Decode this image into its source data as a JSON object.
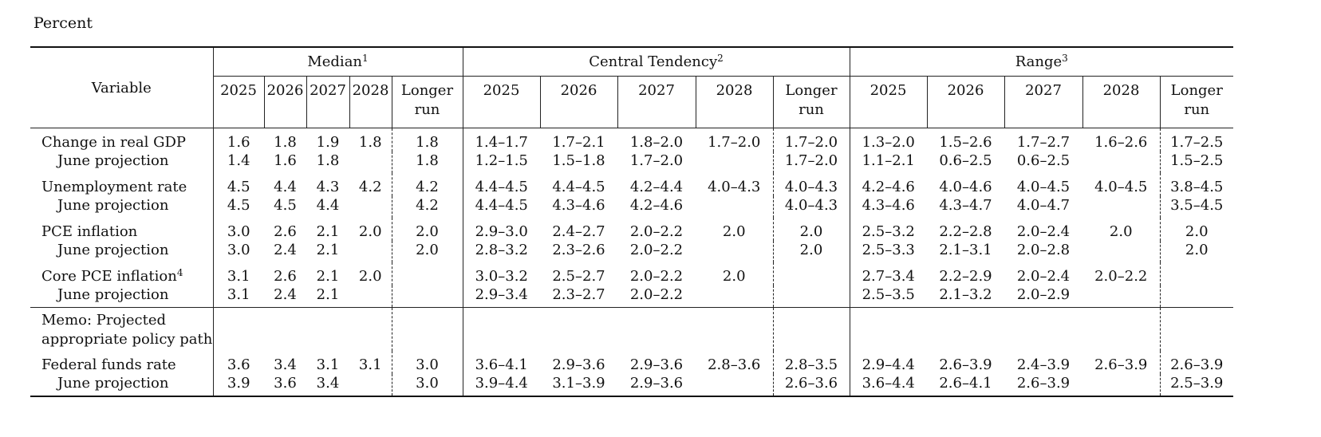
{
  "page_label": "Percent",
  "header": {
    "variable": "Variable",
    "median": "Median",
    "median_note": "1",
    "central_tendency": "Central Tendency",
    "central_tendency_note": "2",
    "range": "Range",
    "range_note": "3",
    "years": [
      "2025",
      "2026",
      "2027",
      "2028"
    ],
    "longer_run_1": "Longer",
    "longer_run_2": "run"
  },
  "rows": {
    "gdp": {
      "label": "Change in real GDP",
      "median": [
        "1.6",
        "1.8",
        "1.9",
        "1.8",
        "1.8"
      ],
      "central": [
        "1.4–1.7",
        "1.7–2.1",
        "1.8–2.0",
        "1.7–2.0",
        "1.7–2.0"
      ],
      "range": [
        "1.3–2.0",
        "1.5–2.6",
        "1.7–2.7",
        "1.6–2.6",
        "1.7–2.5"
      ]
    },
    "gdp_june": {
      "label": "June projection",
      "median": [
        "1.4",
        "1.6",
        "1.8",
        "",
        "1.8"
      ],
      "central": [
        "1.2–1.5",
        "1.5–1.8",
        "1.7–2.0",
        "",
        "1.7–2.0"
      ],
      "range": [
        "1.1–2.1",
        "0.6–2.5",
        "0.6–2.5",
        "",
        "1.5–2.5"
      ]
    },
    "unemp": {
      "label": "Unemployment rate",
      "median": [
        "4.5",
        "4.4",
        "4.3",
        "4.2",
        "4.2"
      ],
      "central": [
        "4.4–4.5",
        "4.4–4.5",
        "4.2–4.4",
        "4.0–4.3",
        "4.0–4.3"
      ],
      "range": [
        "4.2–4.6",
        "4.0–4.6",
        "4.0–4.5",
        "4.0–4.5",
        "3.8–4.5"
      ]
    },
    "unemp_june": {
      "label": "June projection",
      "median": [
        "4.5",
        "4.5",
        "4.4",
        "",
        "4.2"
      ],
      "central": [
        "4.4–4.5",
        "4.3–4.6",
        "4.2–4.6",
        "",
        "4.0–4.3"
      ],
      "range": [
        "4.3–4.6",
        "4.3–4.7",
        "4.0–4.7",
        "",
        "3.5–4.5"
      ]
    },
    "pce": {
      "label": "PCE inflation",
      "median": [
        "3.0",
        "2.6",
        "2.1",
        "2.0",
        "2.0"
      ],
      "central": [
        "2.9–3.0",
        "2.4–2.7",
        "2.0–2.2",
        "2.0",
        "2.0"
      ],
      "range": [
        "2.5–3.2",
        "2.2–2.8",
        "2.0–2.4",
        "2.0",
        "2.0"
      ]
    },
    "pce_june": {
      "label": "June projection",
      "median": [
        "3.0",
        "2.4",
        "2.1",
        "",
        "2.0"
      ],
      "central": [
        "2.8–3.2",
        "2.3–2.6",
        "2.0–2.2",
        "",
        "2.0"
      ],
      "range": [
        "2.5–3.3",
        "2.1–3.1",
        "2.0–2.8",
        "",
        "2.0"
      ]
    },
    "core": {
      "label": "Core PCE inflation",
      "note": "4",
      "median": [
        "3.1",
        "2.6",
        "2.1",
        "2.0",
        ""
      ],
      "central": [
        "3.0–3.2",
        "2.5–2.7",
        "2.0–2.2",
        "2.0",
        ""
      ],
      "range": [
        "2.7–3.4",
        "2.2–2.9",
        "2.0–2.4",
        "2.0–2.2",
        ""
      ]
    },
    "core_june": {
      "label": "June projection",
      "median": [
        "3.1",
        "2.4",
        "2.1",
        "",
        ""
      ],
      "central": [
        "2.9–3.4",
        "2.3–2.7",
        "2.0–2.2",
        "",
        ""
      ],
      "range": [
        "2.5–3.5",
        "2.1–3.2",
        "2.0–2.9",
        "",
        ""
      ]
    },
    "memo": {
      "label": "Memo: Projected appropriate policy path"
    },
    "ffr": {
      "label": "Federal funds rate",
      "median": [
        "3.6",
        "3.4",
        "3.1",
        "3.1",
        "3.0"
      ],
      "central": [
        "3.6–4.1",
        "2.9–3.6",
        "2.9–3.6",
        "2.8–3.6",
        "2.8–3.5"
      ],
      "range": [
        "2.9–4.4",
        "2.6–3.9",
        "2.4–3.9",
        "2.6–3.9",
        "2.6–3.9"
      ]
    },
    "ffr_june": {
      "label": "June projection",
      "median": [
        "3.9",
        "3.6",
        "3.4",
        "",
        "3.0"
      ],
      "central": [
        "3.9–4.4",
        "3.1–3.9",
        "2.9–3.6",
        "",
        "2.6–3.6"
      ],
      "range": [
        "3.6–4.4",
        "2.6–4.1",
        "2.6–3.9",
        "",
        "2.5–3.9"
      ]
    }
  }
}
